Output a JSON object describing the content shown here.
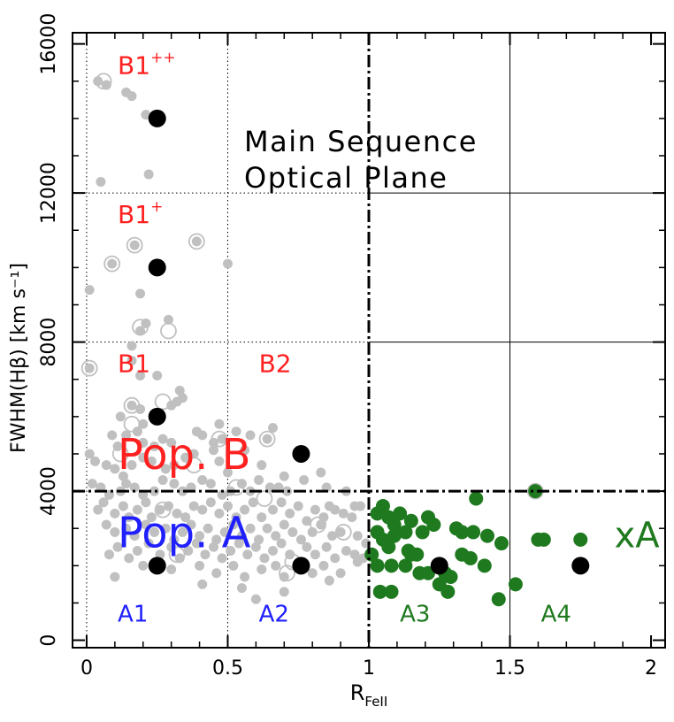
{
  "chart_data": {
    "type": "scatter",
    "title": "Main Sequence Optical Plane",
    "title_lines": [
      "Main Sequence",
      "Optical Plane"
    ],
    "xlabel_main": "R",
    "xlabel_sub": "FeII",
    "ylabel": "FWHM(Hβ) [km s⁻¹]",
    "xlim": [
      -0.05,
      2.05
    ],
    "ylim": [
      -200,
      16300
    ],
    "x_ticks": [
      0,
      0.5,
      1,
      1.5,
      2
    ],
    "x_tick_labels": [
      "0",
      "0.5",
      "1",
      "1.5",
      "2"
    ],
    "y_ticks": [
      0,
      4000,
      8000,
      12000,
      16000
    ],
    "y_tick_labels": [
      "0",
      "4000",
      "8000",
      "12000",
      "16000"
    ],
    "dotted_grid": {
      "x": [
        0,
        0.5
      ],
      "y": [
        8000,
        12000
      ]
    },
    "thin_grid": {
      "x": [
        1.5
      ],
      "y": []
    },
    "boundary_lines": {
      "x": 1.0,
      "y": 4000
    },
    "colors": {
      "gray": "#c0c0c0",
      "green": "#1f7a1f",
      "red": "#ff2020",
      "blue": "#2020ff",
      "black": "#000000"
    },
    "region_labels": [
      {
        "text": "B1",
        "sup": "++",
        "x": 0.11,
        "y": 15200,
        "color": "#ff2020",
        "size": 28
      },
      {
        "text": "B1",
        "sup": "+",
        "x": 0.11,
        "y": 11200,
        "color": "#ff2020",
        "size": 28
      },
      {
        "text": "B1",
        "sup": "",
        "x": 0.11,
        "y": 7200,
        "color": "#ff2020",
        "size": 28
      },
      {
        "text": "B2",
        "sup": "",
        "x": 0.61,
        "y": 7200,
        "color": "#ff2020",
        "size": 28
      },
      {
        "text": "Pop. B",
        "sup": "",
        "x": 0.11,
        "y": 4600,
        "color": "#ff2020",
        "size": 48
      },
      {
        "text": "Pop. A",
        "sup": "",
        "x": 0.11,
        "y": 2500,
        "color": "#2020ff",
        "size": 48
      },
      {
        "text": "A1",
        "sup": "",
        "x": 0.11,
        "y": 500,
        "color": "#2020ff",
        "size": 26
      },
      {
        "text": "A2",
        "sup": "",
        "x": 0.61,
        "y": 500,
        "color": "#2020ff",
        "size": 26
      },
      {
        "text": "A3",
        "sup": "",
        "x": 1.11,
        "y": 500,
        "color": "#1f7a1f",
        "size": 26
      },
      {
        "text": "A4",
        "sup": "",
        "x": 1.61,
        "y": 500,
        "color": "#1f7a1f",
        "size": 26
      },
      {
        "text": "xA",
        "sup": "",
        "x": 1.87,
        "y": 2500,
        "color": "#1f7a1f",
        "size": 40
      }
    ],
    "series": [
      {
        "role": "gray_population",
        "color": "#c0c0c0",
        "points": [
          [
            0.04,
            15000
          ],
          [
            0.07,
            14900
          ],
          [
            0.14,
            14700
          ],
          [
            0.16,
            14600
          ],
          [
            0.21,
            14100
          ],
          [
            0.05,
            12300
          ],
          [
            0.22,
            12500
          ],
          [
            0.09,
            10100
          ],
          [
            0.17,
            10600
          ],
          [
            0.39,
            10700
          ],
          [
            0.5,
            10100
          ],
          [
            0.19,
            9300
          ],
          [
            0.21,
            8500
          ],
          [
            0.19,
            8300
          ],
          [
            0.29,
            8600
          ],
          [
            0.01,
            9400
          ],
          [
            0.01,
            7300
          ],
          [
            0.16,
            7900
          ],
          [
            0.16,
            7500
          ],
          [
            0.19,
            7100
          ],
          [
            0.25,
            7100
          ],
          [
            0.33,
            6700
          ],
          [
            0.34,
            6500
          ],
          [
            0.32,
            6400
          ],
          [
            0.3,
            6300
          ],
          [
            0.12,
            6000
          ],
          [
            0.16,
            6300
          ],
          [
            0.19,
            6200
          ],
          [
            0.2,
            5800
          ],
          [
            0.14,
            5500
          ],
          [
            0.18,
            5600
          ],
          [
            0.09,
            5500
          ],
          [
            0.11,
            5200
          ],
          [
            0.2,
            5300
          ],
          [
            0.24,
            5200
          ],
          [
            0.27,
            5400
          ],
          [
            0.3,
            5300
          ],
          [
            0.39,
            5600
          ],
          [
            0.41,
            5500
          ],
          [
            0.47,
            5800
          ],
          [
            0.48,
            5400
          ],
          [
            0.45,
            5300
          ],
          [
            0.53,
            5600
          ],
          [
            0.58,
            5500
          ],
          [
            0.64,
            5400
          ],
          [
            0.66,
            5700
          ],
          [
            0.01,
            5000
          ],
          [
            0.03,
            4800
          ],
          [
            0.07,
            4700
          ],
          [
            0.1,
            4600
          ],
          [
            0.13,
            4400
          ],
          [
            0.16,
            4700
          ],
          [
            0.2,
            4900
          ],
          [
            0.23,
            4800
          ],
          [
            0.28,
            4600
          ],
          [
            0.31,
            4700
          ],
          [
            0.35,
            4900
          ],
          [
            0.38,
            5000
          ],
          [
            0.45,
            5100
          ],
          [
            0.47,
            4800
          ],
          [
            0.5,
            4500
          ],
          [
            0.56,
            5100
          ],
          [
            0.62,
            4700
          ],
          [
            0.7,
            4400
          ],
          [
            0.71,
            4000
          ],
          [
            0.68,
            4100
          ],
          [
            0.77,
            4300
          ],
          [
            0.83,
            4500
          ],
          [
            0.85,
            4100
          ],
          [
            0.86,
            3600
          ],
          [
            0.92,
            4000
          ],
          [
            0.95,
            3600
          ],
          [
            0.02,
            4200
          ],
          [
            0.05,
            4100
          ],
          [
            0.08,
            3900
          ],
          [
            0.12,
            4000
          ],
          [
            0.14,
            4200
          ],
          [
            0.17,
            4100
          ],
          [
            0.2,
            3900
          ],
          [
            0.24,
            4000
          ],
          [
            0.27,
            4300
          ],
          [
            0.31,
            4200
          ],
          [
            0.34,
            4000
          ],
          [
            0.37,
            4100
          ],
          [
            0.41,
            4300
          ],
          [
            0.44,
            4200
          ],
          [
            0.48,
            3900
          ],
          [
            0.51,
            4000
          ],
          [
            0.55,
            4200
          ],
          [
            0.58,
            4000
          ],
          [
            0.61,
            4300
          ],
          [
            0.65,
            4100
          ],
          [
            0.04,
            3500
          ],
          [
            0.06,
            3700
          ],
          [
            0.1,
            3400
          ],
          [
            0.13,
            3600
          ],
          [
            0.15,
            3300
          ],
          [
            0.18,
            3500
          ],
          [
            0.21,
            3700
          ],
          [
            0.23,
            3300
          ],
          [
            0.26,
            3500
          ],
          [
            0.29,
            3600
          ],
          [
            0.32,
            3400
          ],
          [
            0.35,
            3300
          ],
          [
            0.38,
            3600
          ],
          [
            0.41,
            3500
          ],
          [
            0.44,
            3700
          ],
          [
            0.47,
            3400
          ],
          [
            0.5,
            3600
          ],
          [
            0.53,
            3300
          ],
          [
            0.56,
            3500
          ],
          [
            0.59,
            3700
          ],
          [
            0.62,
            3300
          ],
          [
            0.66,
            3500
          ],
          [
            0.69,
            3700
          ],
          [
            0.72,
            3400
          ],
          [
            0.75,
            3600
          ],
          [
            0.78,
            3200
          ],
          [
            0.81,
            3500
          ],
          [
            0.84,
            3300
          ],
          [
            0.88,
            3500
          ],
          [
            0.91,
            3400
          ],
          [
            0.94,
            3300
          ],
          [
            0.97,
            3600
          ],
          [
            0.07,
            3100
          ],
          [
            0.1,
            2900
          ],
          [
            0.14,
            3000
          ],
          [
            0.17,
            2800
          ],
          [
            0.21,
            3100
          ],
          [
            0.24,
            2900
          ],
          [
            0.28,
            3000
          ],
          [
            0.31,
            2700
          ],
          [
            0.34,
            2900
          ],
          [
            0.37,
            3100
          ],
          [
            0.4,
            2800
          ],
          [
            0.43,
            3000
          ],
          [
            0.46,
            2700
          ],
          [
            0.49,
            2900
          ],
          [
            0.52,
            3100
          ],
          [
            0.55,
            2800
          ],
          [
            0.58,
            3000
          ],
          [
            0.61,
            2700
          ],
          [
            0.64,
            3000
          ],
          [
            0.67,
            2800
          ],
          [
            0.7,
            3100
          ],
          [
            0.73,
            2900
          ],
          [
            0.76,
            2700
          ],
          [
            0.8,
            2900
          ],
          [
            0.83,
            3100
          ],
          [
            0.87,
            2800
          ],
          [
            0.9,
            2900
          ],
          [
            0.96,
            2800
          ],
          [
            0.99,
            2600
          ],
          [
            0.08,
            2300
          ],
          [
            0.11,
            2500
          ],
          [
            0.15,
            2200
          ],
          [
            0.18,
            2400
          ],
          [
            0.22,
            2600
          ],
          [
            0.26,
            2300
          ],
          [
            0.3,
            2500
          ],
          [
            0.33,
            2200
          ],
          [
            0.36,
            2400
          ],
          [
            0.39,
            2600
          ],
          [
            0.42,
            2300
          ],
          [
            0.45,
            2500
          ],
          [
            0.48,
            2200
          ],
          [
            0.51,
            2400
          ],
          [
            0.54,
            2600
          ],
          [
            0.57,
            2300
          ],
          [
            0.6,
            2500
          ],
          [
            0.63,
            2200
          ],
          [
            0.66,
            2400
          ],
          [
            0.69,
            2600
          ],
          [
            0.72,
            2300
          ],
          [
            0.78,
            2500
          ],
          [
            0.81,
            2300
          ],
          [
            0.85,
            2500
          ],
          [
            0.88,
            2200
          ],
          [
            0.92,
            2400
          ],
          [
            0.95,
            2300
          ],
          [
            0.98,
            2200
          ],
          [
            0.2,
            2000
          ],
          [
            0.3,
            1900
          ],
          [
            0.4,
            2000
          ],
          [
            0.46,
            1800
          ],
          [
            0.52,
            2000
          ],
          [
            0.56,
            1700
          ],
          [
            0.62,
            1900
          ],
          [
            0.67,
            2000
          ],
          [
            0.7,
            1700
          ],
          [
            0.8,
            1800
          ],
          [
            0.84,
            2000
          ],
          [
            0.9,
            1800
          ],
          [
            0.96,
            2100
          ],
          [
            0.41,
            1500
          ],
          [
            0.55,
            1400
          ],
          [
            0.7,
            1300
          ],
          [
            0.86,
            1600
          ],
          [
            0.1,
            1700
          ],
          [
            0.6,
            1100
          ]
        ]
      },
      {
        "role": "gray_ring",
        "color": "#c0c0c0",
        "points": [
          [
            0.06,
            15000
          ],
          [
            0.17,
            10600
          ],
          [
            0.39,
            10700
          ],
          [
            0.09,
            10100
          ],
          [
            0.19,
            8400
          ],
          [
            0.29,
            8300
          ],
          [
            0.01,
            7300
          ],
          [
            0.16,
            6300
          ],
          [
            0.27,
            6400
          ],
          [
            0.16,
            5800
          ],
          [
            0.47,
            5400
          ],
          [
            0.12,
            5000
          ],
          [
            0.64,
            5400
          ],
          [
            0.27,
            3500
          ],
          [
            0.63,
            3800
          ],
          [
            0.82,
            3100
          ],
          [
            0.91,
            2900
          ],
          [
            0.32,
            2300
          ],
          [
            0.73,
            2100
          ],
          [
            0.71,
            1800
          ],
          [
            0.38,
            4700
          ],
          [
            0.53,
            4100
          ],
          [
            1.59,
            4000
          ]
        ]
      },
      {
        "role": "green_population",
        "color": "#1f7a1f",
        "points": [
          [
            1.59,
            4000
          ],
          [
            1.38,
            3800
          ],
          [
            1.03,
            3400
          ],
          [
            1.05,
            3600
          ],
          [
            1.07,
            3300
          ],
          [
            1.09,
            3100
          ],
          [
            1.11,
            3400
          ],
          [
            1.15,
            3200
          ],
          [
            1.21,
            3300
          ],
          [
            1.23,
            3100
          ],
          [
            1.03,
            2900
          ],
          [
            1.05,
            2700
          ],
          [
            1.09,
            2800
          ],
          [
            1.13,
            2900
          ],
          [
            1.19,
            2900
          ],
          [
            1.31,
            3000
          ],
          [
            1.33,
            2900
          ],
          [
            1.37,
            2900
          ],
          [
            1.42,
            2800
          ],
          [
            1.47,
            2600
          ],
          [
            1.6,
            2700
          ],
          [
            1.62,
            2700
          ],
          [
            1.75,
            2700
          ],
          [
            1.07,
            2500
          ],
          [
            1.14,
            2400
          ],
          [
            1.17,
            2300
          ],
          [
            1.08,
            2000
          ],
          [
            1.15,
            2300
          ],
          [
            1.01,
            2300
          ],
          [
            1.03,
            2000
          ],
          [
            1.13,
            2000
          ],
          [
            1.18,
            1800
          ],
          [
            1.21,
            1800
          ],
          [
            1.27,
            1800
          ],
          [
            1.29,
            1700
          ],
          [
            1.33,
            2300
          ],
          [
            1.36,
            2200
          ],
          [
            1.41,
            2000
          ],
          [
            1.46,
            1100
          ],
          [
            1.52,
            1500
          ],
          [
            1.04,
            1300
          ],
          [
            1.25,
            1500
          ],
          [
            1.28,
            1300
          ],
          [
            1.08,
            1300
          ]
        ]
      },
      {
        "role": "black_centroids",
        "color": "#000000",
        "points": [
          [
            0.25,
            14000
          ],
          [
            0.25,
            10000
          ],
          [
            0.25,
            6000
          ],
          [
            0.76,
            5000
          ],
          [
            0.25,
            2000
          ],
          [
            0.76,
            2000
          ],
          [
            1.25,
            2000
          ],
          [
            1.75,
            2000
          ]
        ]
      }
    ]
  }
}
